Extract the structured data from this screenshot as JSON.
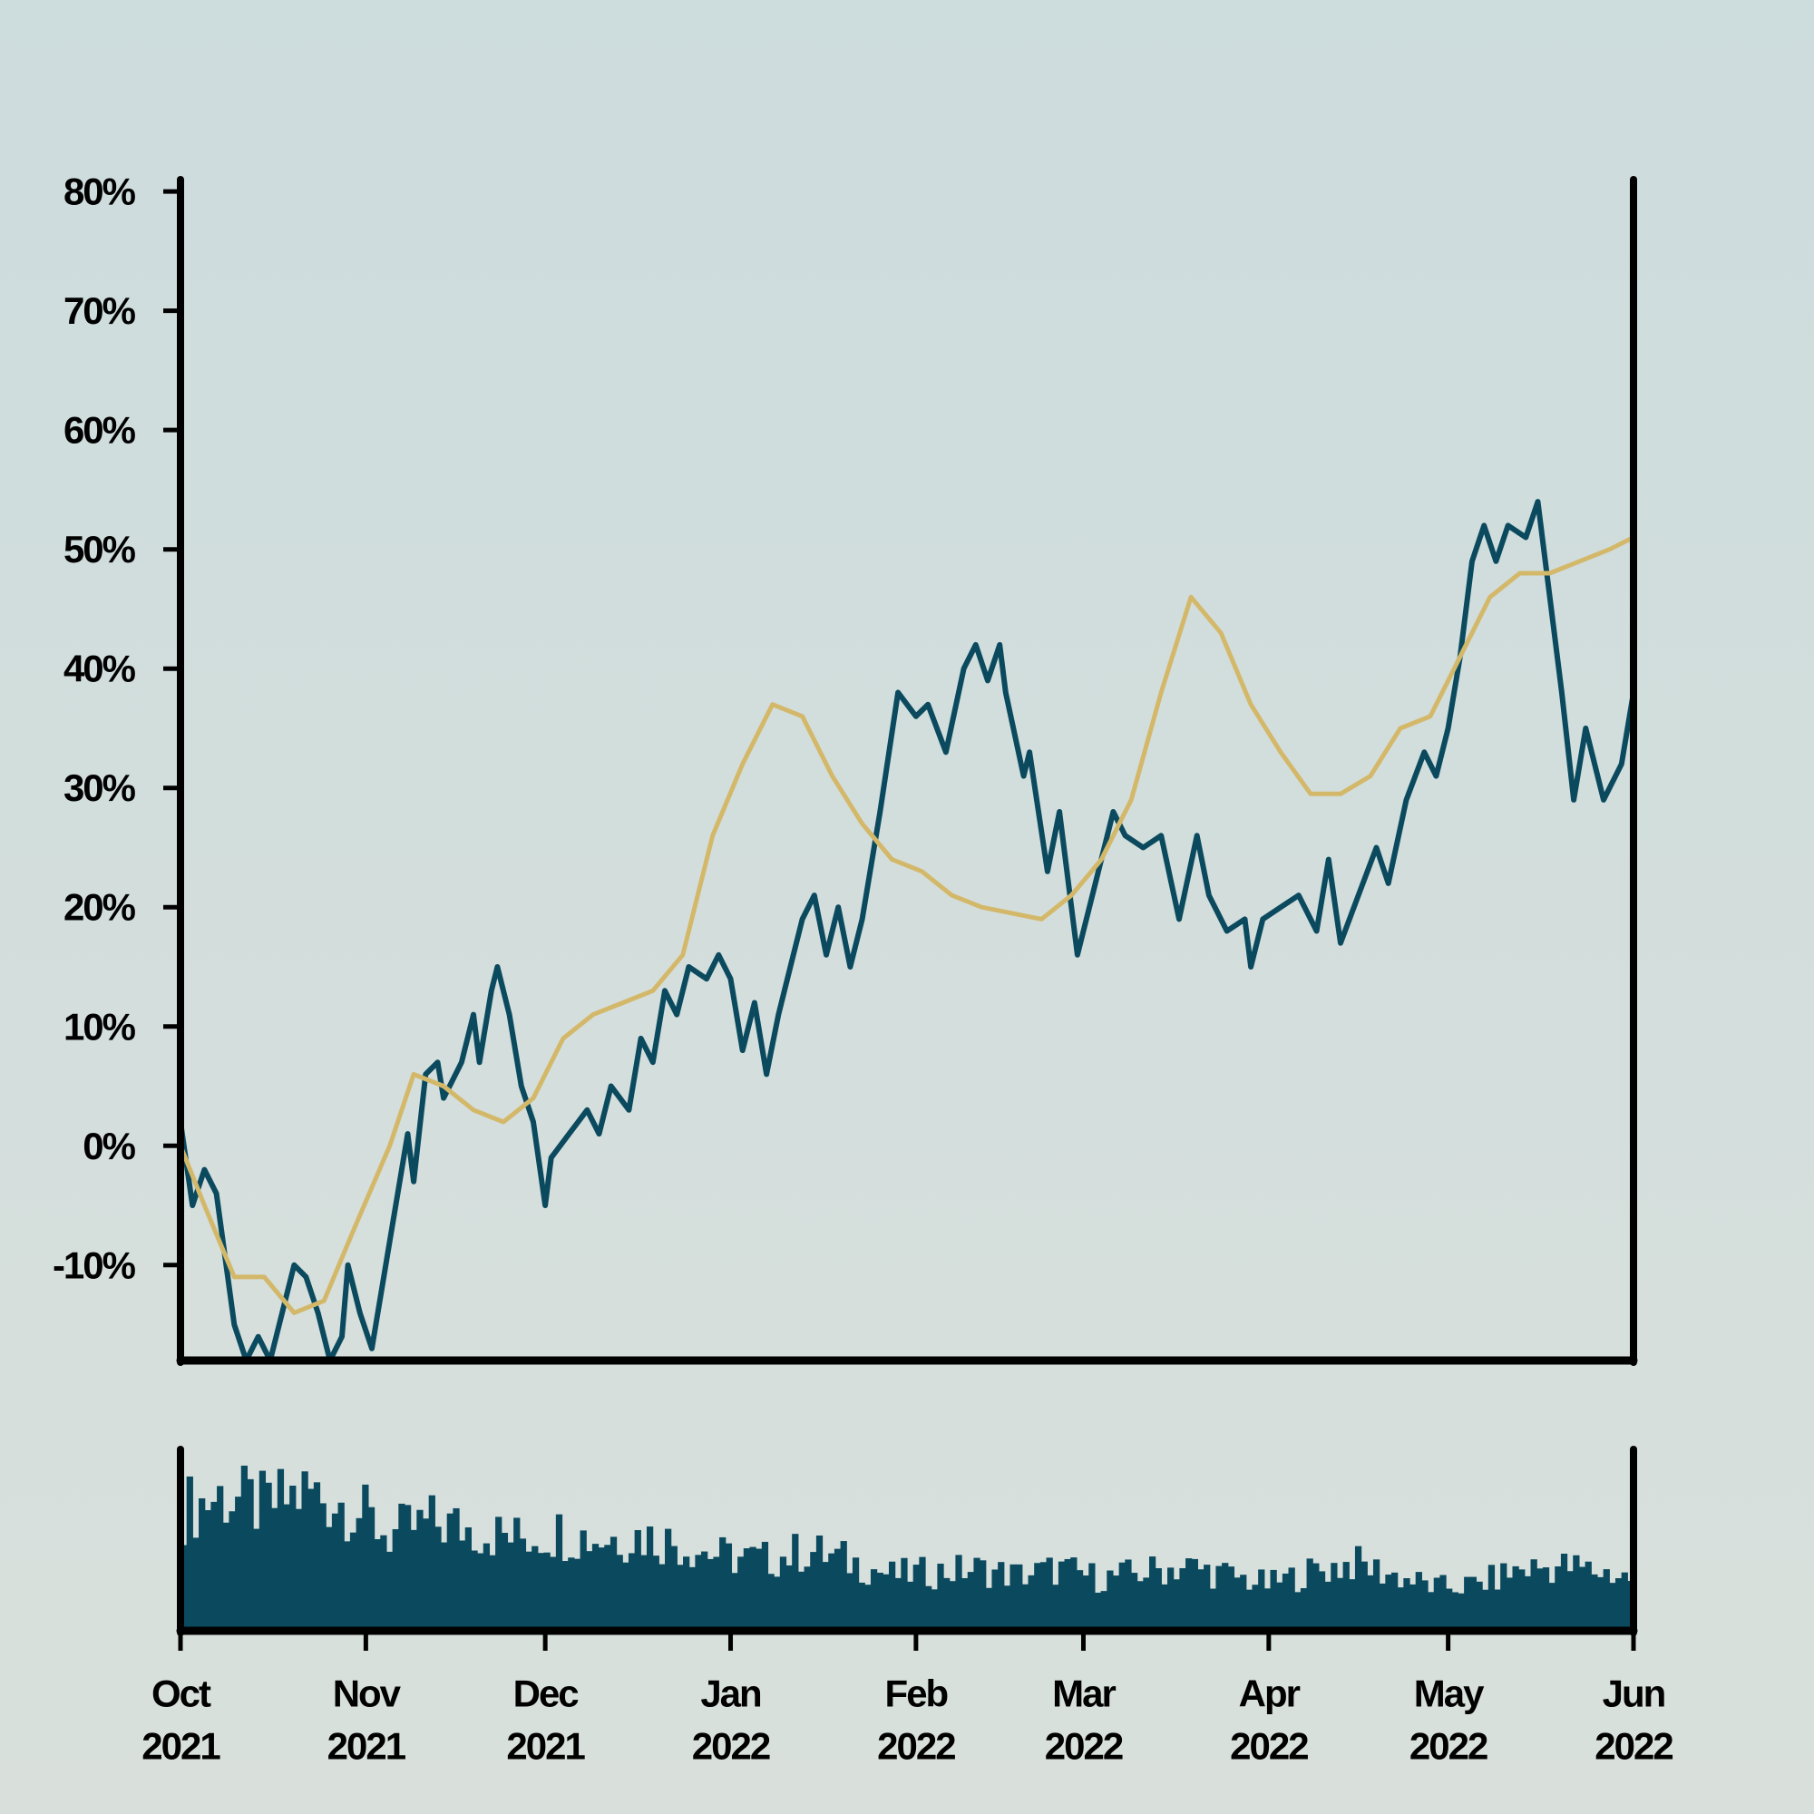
{
  "chart_data": {
    "type": "line",
    "x_range": [
      "2021-10-01",
      "2022-06-01"
    ],
    "x_ticks": [
      {
        "date": "2021-10-01",
        "month": "Oct",
        "year": "2021"
      },
      {
        "date": "2021-11-01",
        "month": "Nov",
        "year": "2021"
      },
      {
        "date": "2021-12-01",
        "month": "Dec",
        "year": "2021"
      },
      {
        "date": "2022-01-01",
        "month": "Jan",
        "year": "2022"
      },
      {
        "date": "2022-02-01",
        "month": "Feb",
        "year": "2022"
      },
      {
        "date": "2022-03-01",
        "month": "Mar",
        "year": "2022"
      },
      {
        "date": "2022-04-01",
        "month": "Apr",
        "year": "2022"
      },
      {
        "date": "2022-05-01",
        "month": "May",
        "year": "2022"
      },
      {
        "date": "2022-06-01",
        "month": "Jun",
        "year": "2022"
      }
    ],
    "y_range": [
      -18,
      81
    ],
    "y_ticks": [
      {
        "value": -10,
        "label": "-10%"
      },
      {
        "value": 0,
        "label": "0%"
      },
      {
        "value": 10,
        "label": "10%"
      },
      {
        "value": 20,
        "label": "20%"
      },
      {
        "value": 30,
        "label": "30%"
      },
      {
        "value": 40,
        "label": "40%"
      },
      {
        "value": 50,
        "label": "50%"
      },
      {
        "value": 60,
        "label": "60%"
      },
      {
        "value": 70,
        "label": "70%"
      },
      {
        "value": 80,
        "label": "80%"
      }
    ],
    "grid": false,
    "colors": {
      "series": "#0b4a5e",
      "average": "#d4b86a",
      "bars": "#0b4a5e",
      "axes": "#000000"
    },
    "series": [
      {
        "values": [
          [
            "2021-10-01",
            2
          ],
          [
            "2021-10-03",
            -5
          ],
          [
            "2021-10-05",
            -2
          ],
          [
            "2021-10-07",
            -4
          ],
          [
            "2021-10-10",
            -15
          ],
          [
            "2021-10-12",
            -18
          ],
          [
            "2021-10-14",
            -16
          ],
          [
            "2021-10-16",
            -18
          ],
          [
            "2021-10-19",
            -12
          ],
          [
            "2021-10-20",
            -10
          ],
          [
            "2021-10-22",
            -11
          ],
          [
            "2021-10-24",
            -14
          ],
          [
            "2021-10-26",
            -18
          ],
          [
            "2021-10-28",
            -16
          ],
          [
            "2021-10-29",
            -10
          ],
          [
            "2021-10-31",
            -14
          ],
          [
            "2021-11-02",
            -17
          ],
          [
            "2021-11-05",
            -8
          ],
          [
            "2021-11-07",
            -2
          ],
          [
            "2021-11-08",
            1
          ],
          [
            "2021-11-09",
            -3
          ],
          [
            "2021-11-11",
            6
          ],
          [
            "2021-11-13",
            7
          ],
          [
            "2021-11-14",
            4
          ],
          [
            "2021-11-17",
            7
          ],
          [
            "2021-11-19",
            11
          ],
          [
            "2021-11-20",
            7
          ],
          [
            "2021-11-22",
            13
          ],
          [
            "2021-11-23",
            15
          ],
          [
            "2021-11-25",
            11
          ],
          [
            "2021-11-27",
            5
          ],
          [
            "2021-11-29",
            2
          ],
          [
            "2021-12-01",
            -5
          ],
          [
            "2021-12-02",
            -1
          ],
          [
            "2021-12-05",
            1
          ],
          [
            "2021-12-08",
            3
          ],
          [
            "2021-12-10",
            1
          ],
          [
            "2021-12-12",
            5
          ],
          [
            "2021-12-15",
            3
          ],
          [
            "2021-12-17",
            9
          ],
          [
            "2021-12-19",
            7
          ],
          [
            "2021-12-21",
            13
          ],
          [
            "2021-12-23",
            11
          ],
          [
            "2021-12-25",
            15
          ],
          [
            "2021-12-28",
            14
          ],
          [
            "2021-12-30",
            16
          ],
          [
            "2022-01-01",
            14
          ],
          [
            "2022-01-03",
            8
          ],
          [
            "2022-01-05",
            12
          ],
          [
            "2022-01-07",
            6
          ],
          [
            "2022-01-09",
            11
          ],
          [
            "2022-01-11",
            15
          ],
          [
            "2022-01-13",
            19
          ],
          [
            "2022-01-15",
            21
          ],
          [
            "2022-01-17",
            16
          ],
          [
            "2022-01-19",
            20
          ],
          [
            "2022-01-21",
            15
          ],
          [
            "2022-01-23",
            19
          ],
          [
            "2022-01-26",
            28
          ],
          [
            "2022-01-29",
            38
          ],
          [
            "2022-02-01",
            36
          ],
          [
            "2022-02-03",
            37
          ],
          [
            "2022-02-06",
            33
          ],
          [
            "2022-02-09",
            40
          ],
          [
            "2022-02-11",
            42
          ],
          [
            "2022-02-13",
            39
          ],
          [
            "2022-02-15",
            42
          ],
          [
            "2022-02-16",
            38
          ],
          [
            "2022-02-19",
            31
          ],
          [
            "2022-02-20",
            33
          ],
          [
            "2022-02-23",
            23
          ],
          [
            "2022-02-25",
            28
          ],
          [
            "2022-02-27",
            20
          ],
          [
            "2022-02-28",
            16
          ],
          [
            "2022-03-03",
            22
          ],
          [
            "2022-03-06",
            28
          ],
          [
            "2022-03-08",
            26
          ],
          [
            "2022-03-11",
            25
          ],
          [
            "2022-03-14",
            26
          ],
          [
            "2022-03-17",
            19
          ],
          [
            "2022-03-20",
            26
          ],
          [
            "2022-03-22",
            21
          ],
          [
            "2022-03-25",
            18
          ],
          [
            "2022-03-28",
            19
          ],
          [
            "2022-03-29",
            15
          ],
          [
            "2022-03-31",
            19
          ],
          [
            "2022-04-03",
            20
          ],
          [
            "2022-04-06",
            21
          ],
          [
            "2022-04-09",
            18
          ],
          [
            "2022-04-11",
            24
          ],
          [
            "2022-04-13",
            17
          ],
          [
            "2022-04-16",
            21
          ],
          [
            "2022-04-19",
            25
          ],
          [
            "2022-04-21",
            22
          ],
          [
            "2022-04-24",
            29
          ],
          [
            "2022-04-27",
            33
          ],
          [
            "2022-04-29",
            31
          ],
          [
            "2022-05-01",
            35
          ],
          [
            "2022-05-03",
            41
          ],
          [
            "2022-05-05",
            49
          ],
          [
            "2022-05-07",
            52
          ],
          [
            "2022-05-09",
            49
          ],
          [
            "2022-05-11",
            52
          ],
          [
            "2022-05-14",
            51
          ],
          [
            "2022-05-16",
            54
          ],
          [
            "2022-05-18",
            46
          ],
          [
            "2022-05-20",
            38
          ],
          [
            "2022-05-22",
            29
          ],
          [
            "2022-05-24",
            35
          ],
          [
            "2022-05-27",
            29
          ],
          [
            "2022-05-30",
            32
          ],
          [
            "2022-06-01",
            38
          ]
        ]
      },
      {
        "values": [
          [
            "2021-10-01",
            0
          ],
          [
            "2021-10-05",
            -5
          ],
          [
            "2021-10-10",
            -11
          ],
          [
            "2021-10-15",
            -11
          ],
          [
            "2021-10-20",
            -14
          ],
          [
            "2021-10-25",
            -13
          ],
          [
            "2021-10-30",
            -7
          ],
          [
            "2021-11-05",
            0
          ],
          [
            "2021-11-09",
            6
          ],
          [
            "2021-11-14",
            5
          ],
          [
            "2021-11-19",
            3
          ],
          [
            "2021-11-24",
            2
          ],
          [
            "2021-11-29",
            4
          ],
          [
            "2021-12-04",
            9
          ],
          [
            "2021-12-09",
            11
          ],
          [
            "2021-12-14",
            12
          ],
          [
            "2021-12-19",
            13
          ],
          [
            "2021-12-24",
            16
          ],
          [
            "2021-12-29",
            26
          ],
          [
            "2022-01-03",
            32
          ],
          [
            "2022-01-08",
            37
          ],
          [
            "2022-01-13",
            36
          ],
          [
            "2022-01-18",
            31
          ],
          [
            "2022-01-23",
            27
          ],
          [
            "2022-01-28",
            24
          ],
          [
            "2022-02-02",
            23
          ],
          [
            "2022-02-07",
            21
          ],
          [
            "2022-02-12",
            20
          ],
          [
            "2022-02-17",
            19.5
          ],
          [
            "2022-02-22",
            19
          ],
          [
            "2022-02-27",
            21
          ],
          [
            "2022-03-04",
            24
          ],
          [
            "2022-03-09",
            29
          ],
          [
            "2022-03-14",
            38
          ],
          [
            "2022-03-19",
            46
          ],
          [
            "2022-03-24",
            43
          ],
          [
            "2022-03-29",
            37
          ],
          [
            "2022-04-03",
            33
          ],
          [
            "2022-04-08",
            29.5
          ],
          [
            "2022-04-13",
            29.5
          ],
          [
            "2022-04-18",
            31
          ],
          [
            "2022-04-23",
            35
          ],
          [
            "2022-04-28",
            36
          ],
          [
            "2022-05-03",
            41
          ],
          [
            "2022-05-08",
            46
          ],
          [
            "2022-05-13",
            48
          ],
          [
            "2022-05-18",
            48
          ],
          [
            "2022-05-23",
            49
          ],
          [
            "2022-05-28",
            50
          ],
          [
            "2022-06-01",
            51
          ]
        ]
      }
    ],
    "volume_series": {
      "values": [
        [
          "2021-10-01",
          78
        ],
        [
          "2021-10-08",
          88
        ],
        [
          "2021-10-15",
          80
        ],
        [
          "2021-10-22",
          90
        ],
        [
          "2021-10-29",
          82
        ],
        [
          "2021-11-05",
          62
        ],
        [
          "2021-11-12",
          70
        ],
        [
          "2021-11-19",
          66
        ],
        [
          "2021-11-26",
          60
        ],
        [
          "2021-12-03",
          64
        ],
        [
          "2021-12-10",
          60
        ],
        [
          "2021-12-17",
          62
        ],
        [
          "2021-12-24",
          56
        ],
        [
          "2021-12-31",
          48
        ],
        [
          "2022-01-07",
          46
        ],
        [
          "2022-01-14",
          52
        ],
        [
          "2022-01-21",
          45
        ],
        [
          "2022-01-28",
          36
        ],
        [
          "2022-02-04",
          38
        ],
        [
          "2022-02-11",
          40
        ],
        [
          "2022-02-18",
          36
        ],
        [
          "2022-02-25",
          40
        ],
        [
          "2022-03-04",
          34
        ],
        [
          "2022-03-11",
          38
        ],
        [
          "2022-03-18",
          42
        ],
        [
          "2022-03-25",
          36
        ],
        [
          "2022-04-01",
          30
        ],
        [
          "2022-04-08",
          38
        ],
        [
          "2022-04-15",
          44
        ],
        [
          "2022-04-22",
          36
        ],
        [
          "2022-04-29",
          28
        ],
        [
          "2022-05-06",
          30
        ],
        [
          "2022-05-13",
          40
        ],
        [
          "2022-05-20",
          42
        ],
        [
          "2022-05-27",
          38
        ],
        [
          "2022-06-01",
          34
        ]
      ]
    }
  }
}
